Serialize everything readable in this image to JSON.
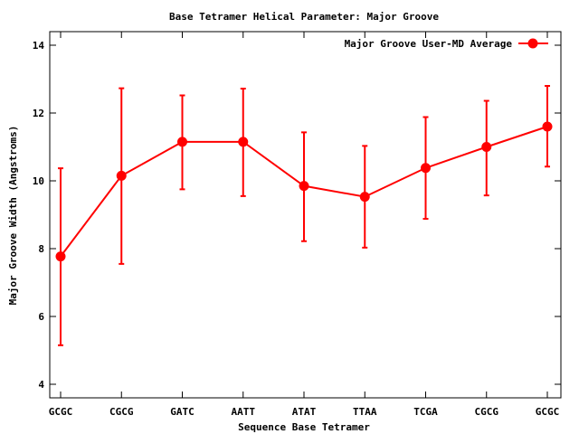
{
  "chart_data": {
    "type": "line",
    "title": "Base Tetramer Helical Parameter: Major Groove",
    "xlabel": "Sequence Base Tetramer",
    "ylabel": "Major Groove Width (Angstroms)",
    "categories": [
      "GCGC",
      "CGCG",
      "GATC",
      "AATT",
      "ATAT",
      "TTAA",
      "TCGA",
      "CGCG",
      "GCGC"
    ],
    "ylim": [
      3.6,
      14.4
    ],
    "yticks": [
      4,
      6,
      8,
      10,
      12,
      14
    ],
    "grid": false,
    "legend_position": "top-right",
    "series": [
      {
        "name": "Major Groove User-MD Average",
        "color": "#ff0000",
        "values": [
          7.77,
          10.15,
          11.15,
          11.15,
          9.85,
          9.53,
          10.38,
          11.0,
          11.6
        ],
        "error_low": [
          5.15,
          7.55,
          9.75,
          9.55,
          8.22,
          8.03,
          8.88,
          9.57,
          10.42
        ],
        "error_high": [
          10.37,
          12.73,
          12.52,
          12.72,
          11.43,
          11.03,
          11.88,
          12.36,
          12.8
        ]
      }
    ]
  }
}
